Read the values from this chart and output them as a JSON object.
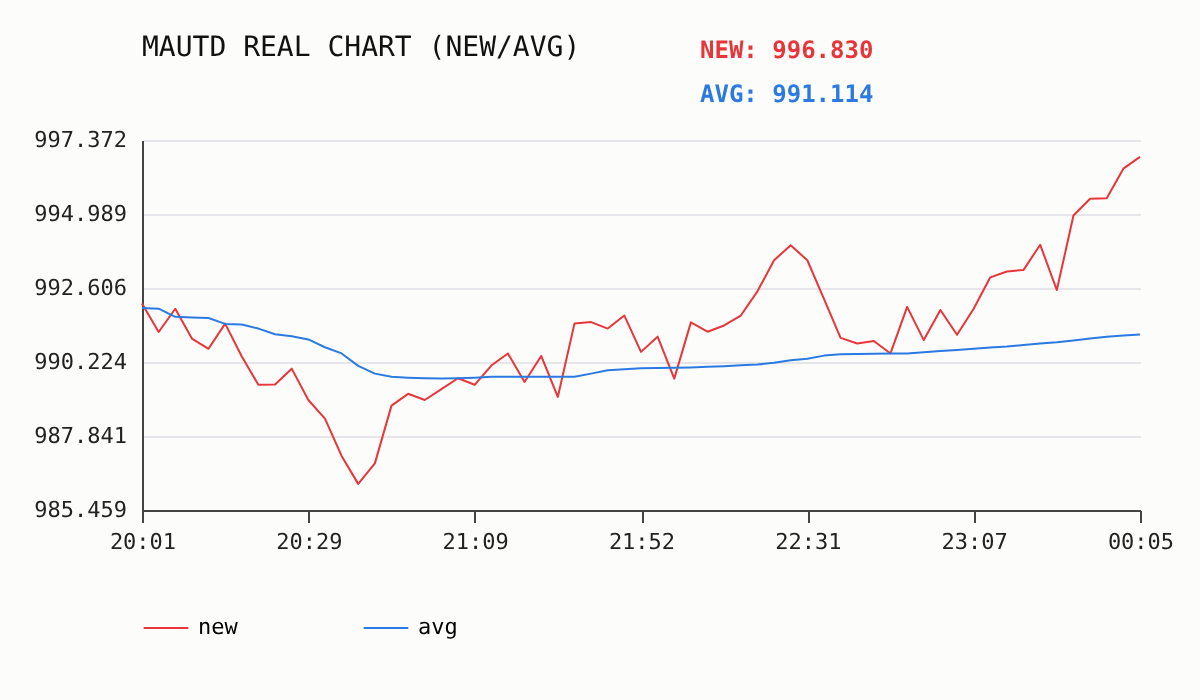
{
  "chart_data": {
    "type": "line",
    "title": "MAUTD REAL CHART (NEW/AVG)",
    "annotations": [
      "NEW: 996.830",
      "AVG: 991.114"
    ],
    "categories": [
      "20:01",
      null,
      null,
      null,
      null,
      null,
      null,
      null,
      null,
      null,
      "20:29",
      null,
      null,
      null,
      null,
      null,
      null,
      null,
      null,
      null,
      "21:09",
      null,
      null,
      null,
      null,
      null,
      null,
      null,
      null,
      null,
      "21:52",
      null,
      null,
      null,
      null,
      null,
      null,
      null,
      null,
      null,
      "22:31",
      null,
      null,
      null,
      null,
      null,
      null,
      null,
      null,
      null,
      "23:07",
      null,
      null,
      null,
      null,
      null,
      null,
      null,
      null,
      null,
      "00:05"
    ],
    "ylim": [
      985.459,
      997.372
    ],
    "yticks": [
      985.459,
      987.841,
      990.224,
      992.606,
      994.989,
      997.372
    ],
    "grid": "y",
    "legend": "bottom",
    "series": [
      {
        "name": "new",
        "color": "#e8353a",
        "values": [
          992.11,
          991.19,
          991.94,
          990.98,
          990.65,
          991.46,
          990.4,
          989.49,
          989.5,
          990.01,
          989.0,
          988.4,
          987.2,
          986.3,
          986.96,
          988.82,
          989.2,
          989.0,
          989.35,
          989.7,
          989.49,
          990.11,
          990.5,
          989.58,
          990.42,
          989.1,
          991.46,
          991.51,
          991.3,
          991.72,
          990.55,
          991.04,
          989.69,
          991.5,
          991.2,
          991.4,
          991.72,
          992.5,
          993.5,
          993.98,
          993.5,
          992.26,
          991.0,
          990.82,
          990.9,
          990.5,
          992.0,
          990.93,
          991.9,
          991.1,
          991.94,
          992.95,
          993.14,
          993.19,
          994.0,
          992.54,
          994.94,
          995.48,
          995.5,
          996.45,
          996.83
        ]
      },
      {
        "name": "avg",
        "color": "#2a7ae2",
        "values": [
          991.96,
          991.94,
          991.68,
          991.66,
          991.64,
          991.45,
          991.43,
          991.3,
          991.12,
          991.05,
          990.95,
          990.7,
          990.5,
          990.1,
          989.85,
          989.75,
          989.72,
          989.7,
          989.69,
          989.7,
          989.72,
          989.75,
          989.75,
          989.75,
          989.75,
          989.75,
          989.75,
          989.85,
          989.96,
          989.99,
          990.02,
          990.03,
          990.04,
          990.05,
          990.07,
          990.09,
          990.12,
          990.14,
          990.2,
          990.28,
          990.33,
          990.43,
          990.47,
          990.48,
          990.49,
          990.5,
          990.5,
          990.54,
          990.58,
          990.61,
          990.65,
          990.69,
          990.72,
          990.77,
          990.82,
          990.86,
          990.92,
          990.98,
          991.04,
          991.08,
          991.11
        ]
      }
    ]
  }
}
